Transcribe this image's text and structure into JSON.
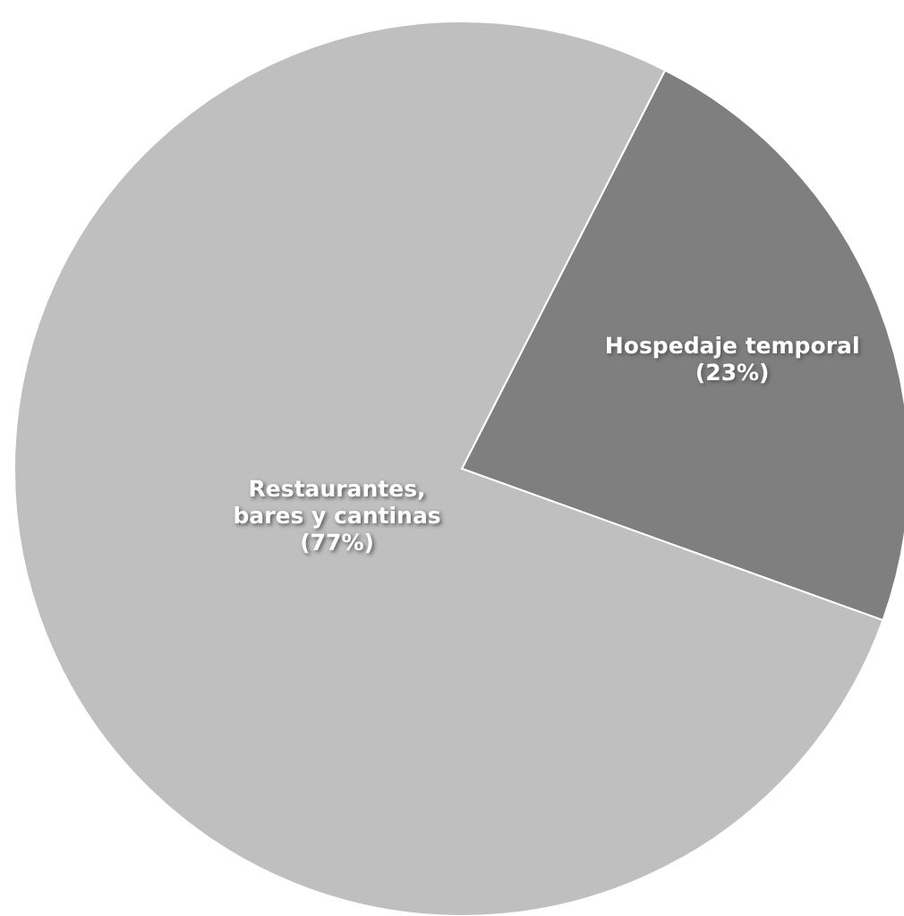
{
  "chart_data": {
    "type": "pie",
    "categories": [
      "Hospedaje temporal",
      "Restaurantes, bares y cantinas"
    ],
    "values": [
      23,
      77
    ],
    "colors": [
      "#7f7f7f",
      "#bfbfbf"
    ],
    "value_labels": [
      "(23%)",
      "(77%)"
    ]
  }
}
